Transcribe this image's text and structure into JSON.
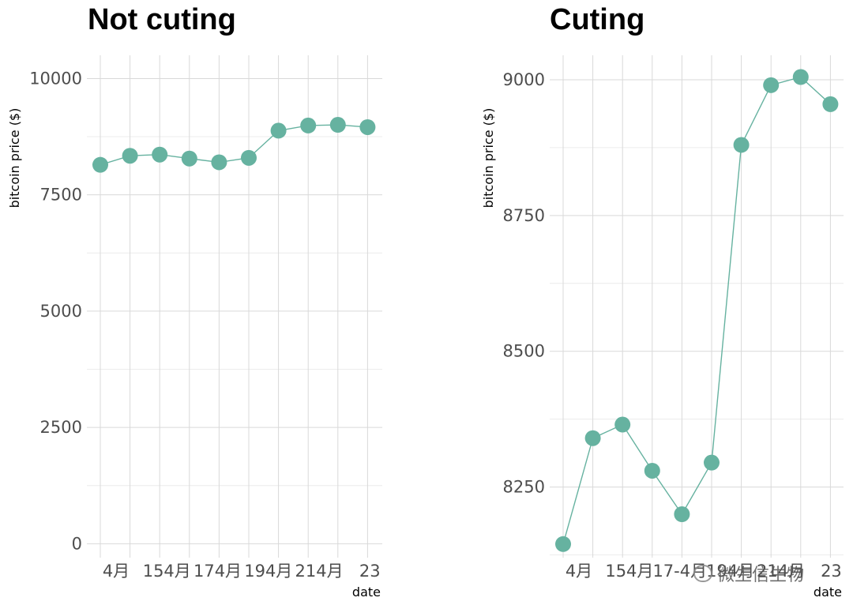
{
  "chart_data": [
    {
      "type": "line",
      "title": "Not cuting",
      "xlabel": "date",
      "ylabel": "bitcoin price ($)",
      "x_tick_labels": [
        "4月",
        "154月",
        "174月",
        "194月",
        "214月",
        "23"
      ],
      "y_ticks": [
        0,
        2500,
        5000,
        7500,
        10000
      ],
      "ylim": [
        -300,
        10500
      ],
      "grid": true,
      "series": [
        {
          "values": [
            8145,
            8340,
            8365,
            8280,
            8200,
            8295,
            8880,
            8990,
            9005,
            8955
          ]
        }
      ]
    },
    {
      "type": "line",
      "title": "Cuting",
      "xlabel": "date",
      "ylabel": "bitcoin price ($)",
      "x_tick_labels": [
        "4月",
        "154月",
        "17-4月",
        "194月",
        "214月",
        "23"
      ],
      "y_ticks": [
        8250,
        8500,
        8750,
        9000
      ],
      "ylim": [
        8120,
        9045
      ],
      "grid": true,
      "series": [
        {
          "values": [
            8145,
            8340,
            8365,
            8280,
            8200,
            8295,
            8880,
            8990,
            9005,
            8955
          ]
        }
      ]
    }
  ],
  "watermark": {
    "text": "微生信生物",
    "icon": "wechat-icon"
  }
}
